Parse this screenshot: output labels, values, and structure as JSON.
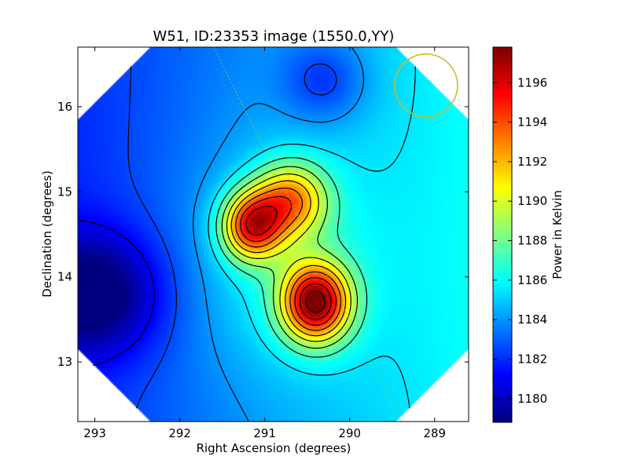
{
  "chart_data": {
    "type": "heatmap",
    "title": "W51, ID:23353 image (1550.0,YY)",
    "xlabel": "Right Ascension (degrees)",
    "ylabel": "Declination (degrees)",
    "xlim": [
      293.2,
      288.6
    ],
    "ylim": [
      12.3,
      16.7
    ],
    "x_ticks": [
      {
        "value": 293,
        "label": "293"
      },
      {
        "value": 292,
        "label": "292"
      },
      {
        "value": 291,
        "label": "291"
      },
      {
        "value": 290,
        "label": "290"
      },
      {
        "value": 289,
        "label": "289"
      }
    ],
    "y_ticks": [
      {
        "value": 13,
        "label": "13"
      },
      {
        "value": 14,
        "label": "14"
      },
      {
        "value": 15,
        "label": "15"
      },
      {
        "value": 16,
        "label": "16"
      }
    ],
    "colorbar": {
      "label": "Power in Kelvin",
      "range": [
        1178.8,
        1197.8
      ],
      "colormap": "jet",
      "ticks": [
        {
          "value": 1180,
          "label": "1180"
        },
        {
          "value": 1182,
          "label": "1182"
        },
        {
          "value": 1184,
          "label": "1184"
        },
        {
          "value": 1186,
          "label": "1186"
        },
        {
          "value": 1188,
          "label": "1188"
        },
        {
          "value": 1190,
          "label": "1190"
        },
        {
          "value": 1192,
          "label": "1192"
        },
        {
          "value": 1194,
          "label": "1194"
        },
        {
          "value": 1196,
          "label": "1196"
        }
      ]
    },
    "sources": [
      {
        "ra": 290.4,
        "dec": 13.7,
        "peak": 1197.8,
        "sigma_ra": 0.28,
        "sigma_dec": 0.32
      },
      {
        "ra": 291.15,
        "dec": 14.6,
        "peak": 1195.4,
        "sigma_ra": 0.25,
        "sigma_dec": 0.28
      },
      {
        "ra": 290.7,
        "dec": 14.9,
        "peak": 1193.0,
        "sigma_ra": 0.3,
        "sigma_dec": 0.3
      }
    ],
    "annotations": [
      {
        "type": "circle",
        "ra": 289.1,
        "dec": 16.25,
        "radius_deg": 0.37,
        "color": "#c8c020"
      },
      {
        "type": "dotted-line",
        "from": [
          291.6,
          16.7
        ],
        "to": [
          289.4,
          12.3
        ],
        "color": "#c8c020"
      }
    ],
    "colors": {
      "contour": "#000000",
      "annotation": "#c8c020"
    }
  }
}
